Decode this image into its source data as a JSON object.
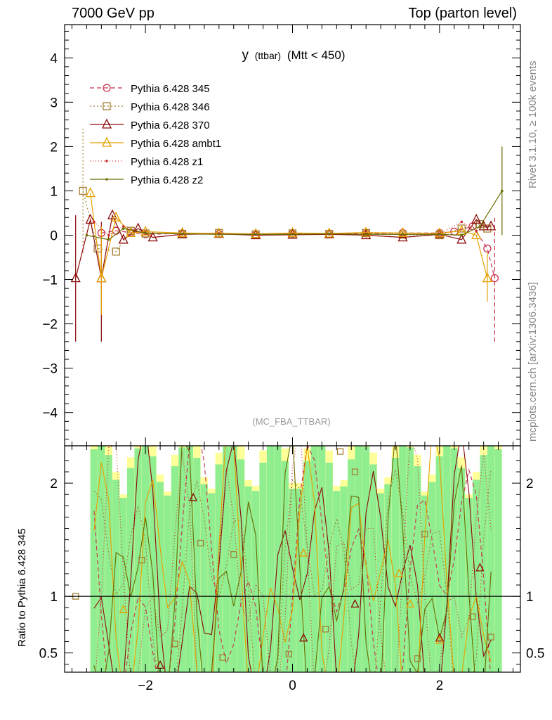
{
  "header": {
    "left": "7000 GeV pp",
    "right": "Top (parton level)"
  },
  "side": {
    "rivet": "Rivet 3.1.10, ≥ 100k events",
    "mcplots": "mcplots.cern.ch [arXiv:1306.3436]"
  },
  "chart_data": {
    "type": "line",
    "title_main": "y",
    "title_sub": "(ttbar)",
    "title_cut": "(Mtt < 450)",
    "watermark": "(MC_FBA_TTBAR)",
    "ratio_ylabel": "Ratio to Pythia 6.428 345",
    "xlim": [
      -3.1,
      3.1
    ],
    "ylim": [
      -4.75,
      4.75
    ],
    "ratio_ylim": [
      0.33,
      2.33
    ],
    "xticks": [
      -2,
      0,
      2
    ],
    "xtick_labels": [
      "−2",
      "0",
      "2"
    ],
    "yticks": [
      -4,
      -3,
      -2,
      -1,
      0,
      1,
      2,
      3,
      4
    ],
    "ytick_labels": [
      "−4",
      "−3",
      "−2",
      "−1",
      "0",
      "1",
      "2",
      "3",
      "4"
    ],
    "ratio_yticks": [
      0.5,
      1,
      2
    ],
    "ratio_ytick_labels": [
      "0.5",
      "1",
      "2"
    ],
    "grid": false,
    "legend_position": "top-left",
    "series": [
      {
        "name": "Pythia 6.428 345",
        "color": "#c8324b",
        "marker": "circle",
        "dash": "6,4",
        "points": [
          [
            -2.6,
            0.05
          ],
          [
            -2.4,
            0.1
          ],
          [
            -2.2,
            0.06
          ],
          [
            -2.0,
            0.02
          ],
          [
            -1.5,
            0.04
          ],
          [
            -1.0,
            0.03
          ],
          [
            -0.5,
            0.01
          ],
          [
            0.0,
            0.03
          ],
          [
            0.5,
            0.02
          ],
          [
            1.0,
            0.04
          ],
          [
            1.5,
            0.05
          ],
          [
            2.0,
            0.05
          ],
          [
            2.2,
            0.08
          ],
          [
            2.45,
            0.2
          ],
          [
            2.65,
            -0.3
          ],
          [
            2.75,
            -0.97
          ]
        ],
        "errors": [
          [
            2.75,
            -2.4,
            0.4
          ]
        ]
      },
      {
        "name": "Pythia 6.428 346",
        "color": "#a57f35",
        "marker": "square",
        "dash": "2,3",
        "points": [
          [
            -2.85,
            1.0
          ],
          [
            -2.65,
            -0.3
          ],
          [
            -2.4,
            -0.37
          ],
          [
            -2.2,
            0.1
          ],
          [
            -2.0,
            0.04
          ],
          [
            -1.5,
            0.03
          ],
          [
            -1.0,
            0.05
          ],
          [
            -0.5,
            0.02
          ],
          [
            0.0,
            0.04
          ],
          [
            0.5,
            0.03
          ],
          [
            1.0,
            0.05
          ],
          [
            1.5,
            0.01
          ],
          [
            2.0,
            0.0
          ],
          [
            2.3,
            0.15
          ],
          [
            2.55,
            0.25
          ],
          [
            2.65,
            0.15
          ]
        ],
        "errors": [
          [
            -2.85,
            -0.4,
            2.4
          ]
        ]
      },
      {
        "name": "Pythia 6.428 370",
        "color": "#8b0a0a",
        "marker": "triangle",
        "dash": "",
        "points": [
          [
            -2.95,
            -0.97
          ],
          [
            -2.75,
            0.35
          ],
          [
            -2.6,
            -0.97
          ],
          [
            -2.45,
            0.45
          ],
          [
            -2.3,
            -0.1
          ],
          [
            -2.1,
            0.15
          ],
          [
            -1.9,
            -0.05
          ],
          [
            -1.5,
            0.02
          ],
          [
            -1.0,
            0.03
          ],
          [
            -0.5,
            0.0
          ],
          [
            0.0,
            0.01
          ],
          [
            0.5,
            0.02
          ],
          [
            1.0,
            0.0
          ],
          [
            1.5,
            -0.05
          ],
          [
            2.0,
            0.02
          ],
          [
            2.3,
            -0.1
          ],
          [
            2.5,
            0.35
          ],
          [
            2.6,
            0.2
          ],
          [
            2.7,
            0.2
          ]
        ],
        "errors": [
          [
            -2.95,
            -2.4,
            0.45
          ],
          [
            -2.6,
            -2.4,
            0.3
          ]
        ]
      },
      {
        "name": "Pythia 6.428 ambt1",
        "color": "#e6a000",
        "marker": "triangle",
        "dash": "",
        "points": [
          [
            -2.75,
            0.95
          ],
          [
            -2.6,
            -0.97
          ],
          [
            -2.4,
            0.4
          ],
          [
            -2.2,
            0.05
          ],
          [
            -2.0,
            0.08
          ],
          [
            -1.5,
            0.05
          ],
          [
            -1.0,
            0.04
          ],
          [
            -0.5,
            0.03
          ],
          [
            0.0,
            0.05
          ],
          [
            0.5,
            0.04
          ],
          [
            1.0,
            0.06
          ],
          [
            1.5,
            0.05
          ],
          [
            2.0,
            0.04
          ],
          [
            2.3,
            0.1
          ],
          [
            2.5,
            0.0
          ],
          [
            2.65,
            -0.97
          ]
        ],
        "errors": [
          [
            -2.6,
            -1.8,
            0.2
          ],
          [
            2.65,
            -1.5,
            -0.4
          ]
        ]
      },
      {
        "name": "Pythia 6.428 z1",
        "color": "#d22828",
        "marker": "dot",
        "dash": "1,3",
        "points": [
          [
            -2.7,
            0.3
          ],
          [
            -2.5,
            0.0
          ],
          [
            -2.3,
            0.2
          ],
          [
            -2.0,
            0.05
          ],
          [
            -1.5,
            0.02
          ],
          [
            -1.0,
            0.04
          ],
          [
            -0.5,
            0.01
          ],
          [
            0.0,
            0.03
          ],
          [
            0.5,
            0.02
          ],
          [
            1.0,
            0.03
          ],
          [
            1.5,
            0.02
          ],
          [
            2.0,
            0.03
          ],
          [
            2.3,
            0.3
          ],
          [
            2.5,
            0.1
          ]
        ],
        "errors": []
      },
      {
        "name": "Pythia 6.428 z2",
        "color": "#6b6b00",
        "marker": "dot",
        "dash": "",
        "points": [
          [
            -2.8,
            0.0
          ],
          [
            -2.5,
            -0.1
          ],
          [
            -2.3,
            0.15
          ],
          [
            -2.0,
            0.05
          ],
          [
            -1.5,
            0.03
          ],
          [
            -1.0,
            0.02
          ],
          [
            -0.5,
            0.02
          ],
          [
            0.0,
            0.02
          ],
          [
            0.5,
            0.03
          ],
          [
            1.0,
            0.02
          ],
          [
            1.5,
            0.02
          ],
          [
            2.0,
            0.02
          ],
          [
            2.3,
            0.0
          ],
          [
            2.55,
            0.2
          ],
          [
            2.85,
            1.0
          ]
        ],
        "errors": [
          [
            2.85,
            0.0,
            2.0
          ]
        ]
      }
    ],
    "ratio_markers": [
      {
        "series": 1,
        "x": -2.95,
        "y": 1.0
      },
      {
        "series": 1,
        "x": -2.05,
        "y": 1.32
      },
      {
        "series": 1,
        "x": -1.25,
        "y": 1.47
      },
      {
        "series": 1,
        "x": -0.8,
        "y": 1.37
      },
      {
        "series": 1,
        "x": -1.6,
        "y": 0.58
      },
      {
        "series": 1,
        "x": -0.95,
        "y": 0.46
      },
      {
        "series": 1,
        "x": -0.05,
        "y": 0.49
      },
      {
        "series": 1,
        "x": 0.45,
        "y": 0.71
      },
      {
        "series": 1,
        "x": 0.65,
        "y": 2.28
      },
      {
        "series": 1,
        "x": 0.85,
        "y": 2.1
      },
      {
        "series": 1,
        "x": 1.8,
        "y": 1.55
      },
      {
        "series": 1,
        "x": 1.7,
        "y": 0.45
      },
      {
        "series": 1,
        "x": 2.45,
        "y": 0.82
      },
      {
        "series": 1,
        "x": 2.7,
        "y": 0.64
      },
      {
        "series": 2,
        "x": -1.35,
        "y": 1.87
      },
      {
        "series": 2,
        "x": -1.8,
        "y": 0.39
      },
      {
        "series": 2,
        "x": 0.15,
        "y": 0.63
      },
      {
        "series": 2,
        "x": 0.85,
        "y": 0.93
      },
      {
        "series": 2,
        "x": 2.0,
        "y": 0.63
      },
      {
        "series": 2,
        "x": 2.55,
        "y": 1.25
      },
      {
        "series": 3,
        "x": -2.3,
        "y": 0.88
      },
      {
        "series": 3,
        "x": 0.15,
        "y": 1.38
      },
      {
        "series": 3,
        "x": 1.6,
        "y": 0.93
      },
      {
        "series": 3,
        "x": 2.0,
        "y": 0.61
      },
      {
        "series": 3,
        "x": 1.45,
        "y": 1.2
      }
    ]
  }
}
